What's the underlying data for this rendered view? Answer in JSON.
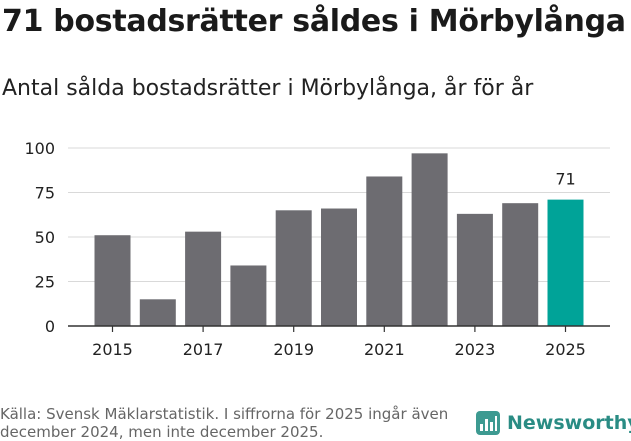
{
  "title": "71 bostadsrätter såldes i Mörbylånga",
  "subtitle": "Antal sålda bostadsrätter i Mörbylånga, år för år",
  "footer": "Källa: Svensk Mäklarstatistik. I siffrorna för 2025 ingår även december 2024, men inte december 2025.",
  "logo": {
    "text": "Newsworthy",
    "icon": "bar-chart-logo-icon",
    "color": "#3d9a91"
  },
  "colors": {
    "bar": "#6d6c71",
    "highlight": "#00a398",
    "grid": "#d9d9d9",
    "axis": "#333333"
  },
  "chart_data": {
    "type": "bar",
    "title": "Antal sålda bostadsrätter i Mörbylånga, år för år",
    "xlabel": "",
    "ylabel": "",
    "categories": [
      "2015",
      "2016",
      "2017",
      "2018",
      "2019",
      "2020",
      "2021",
      "2022",
      "2023",
      "2024",
      "2025"
    ],
    "values": [
      51,
      15,
      53,
      34,
      65,
      66,
      84,
      97,
      63,
      69,
      71
    ],
    "x_tick_labels": [
      "2015",
      "2017",
      "2019",
      "2021",
      "2023",
      "2025"
    ],
    "y_ticks": [
      0,
      25,
      50,
      75,
      100
    ],
    "ylim": [
      0,
      100
    ],
    "grid": true,
    "highlight_index": 10,
    "highlight_label": "71"
  }
}
